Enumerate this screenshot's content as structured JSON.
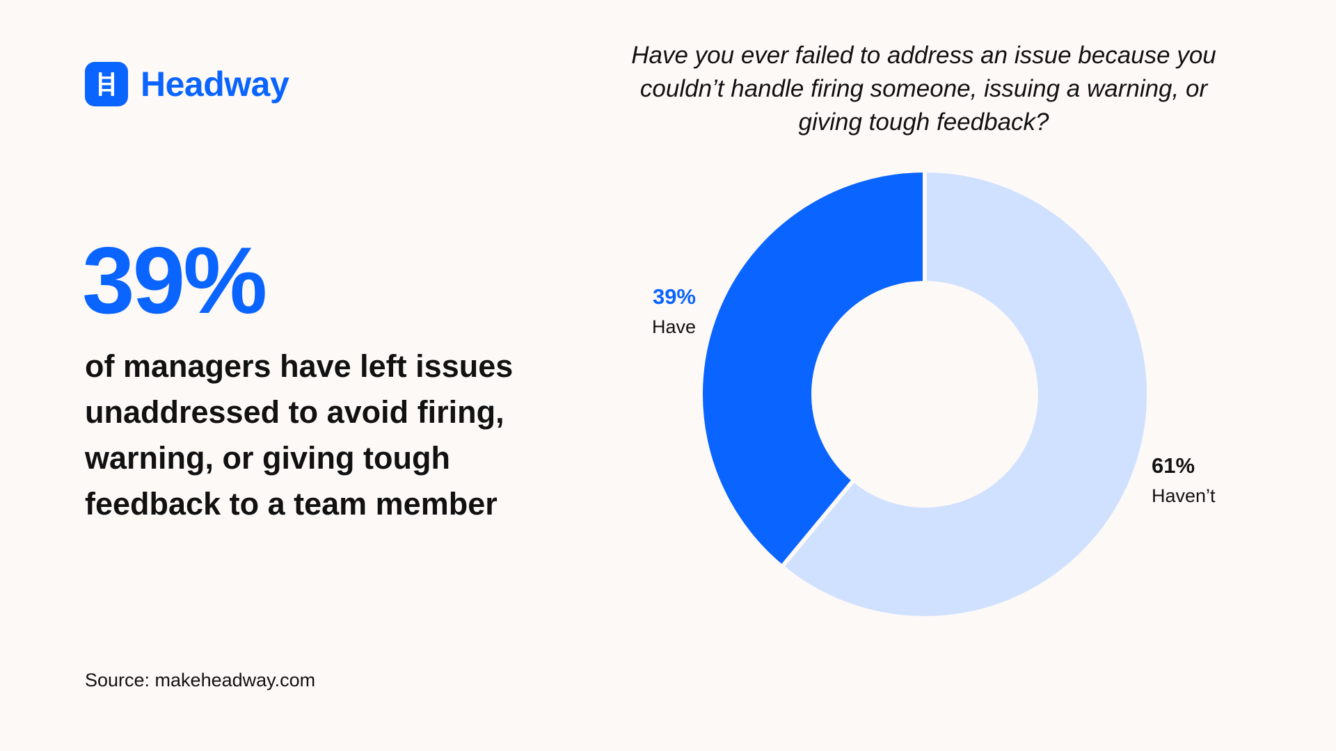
{
  "brand": {
    "name": "Headway",
    "icon": "ladder-icon",
    "color": "#0a64ff"
  },
  "stat": {
    "value": "39%",
    "headline": "of managers have left issues unaddressed to avoid firing, warning, or giving tough feedback to a team member"
  },
  "source": "Source: makeheadway.com",
  "chart_data": {
    "type": "pie",
    "title": "Have you ever failed to address an issue because you couldn’t handle firing someone, issuing a warning, or giving tough feedback?",
    "donut": true,
    "slices": [
      {
        "label": "Have",
        "value": 39,
        "display": "39%",
        "color": "#0a64ff",
        "label_color": "#0a64ff"
      },
      {
        "label": "Haven’t",
        "value": 61,
        "display": "61%",
        "color": "#cfe1fe",
        "label_color": "#111111"
      }
    ]
  }
}
